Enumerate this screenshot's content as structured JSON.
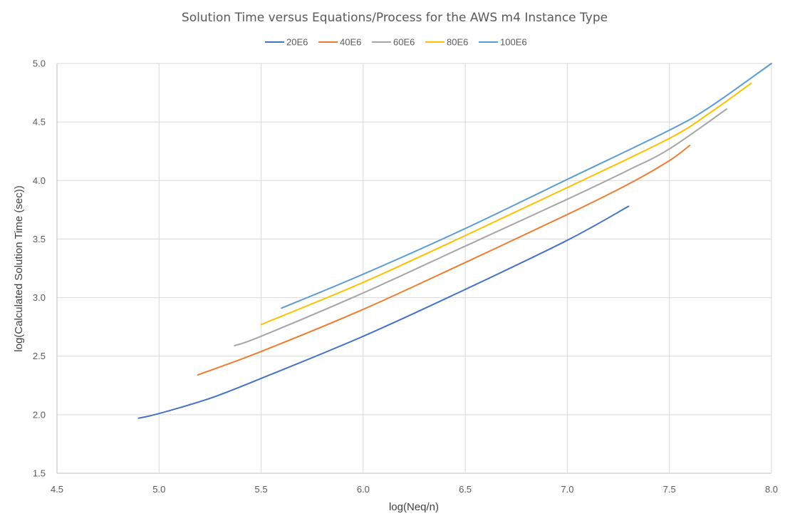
{
  "chart_data": {
    "type": "line",
    "title": "Solution Time versus Equations/Process for the AWS m4 Instance Type",
    "xlabel": "log(Neq/n)",
    "ylabel": "log(Calculated Solution Time (sec))",
    "xlim": [
      4.5,
      8.0
    ],
    "ylim": [
      1.5,
      5.0
    ],
    "xticks": [
      "4.5",
      "5.0",
      "5.5",
      "6.0",
      "6.5",
      "7.0",
      "7.5",
      "8.0"
    ],
    "yticks": [
      "1.5",
      "2.0",
      "2.5",
      "3.0",
      "3.5",
      "4.0",
      "4.5",
      "5.0"
    ],
    "grid": true,
    "legend_position": "top",
    "series": [
      {
        "name": "20E6",
        "color": "#4472c4",
        "points": [
          [
            4.9,
            1.97
          ],
          [
            5.0,
            2.01
          ],
          [
            5.25,
            2.14
          ],
          [
            5.5,
            2.31
          ],
          [
            6.0,
            2.67
          ],
          [
            6.5,
            3.07
          ],
          [
            7.0,
            3.49
          ],
          [
            7.3,
            3.78
          ]
        ]
      },
      {
        "name": "40E6",
        "color": "#ed7d31",
        "points": [
          [
            5.19,
            2.34
          ],
          [
            5.5,
            2.54
          ],
          [
            6.0,
            2.9
          ],
          [
            6.5,
            3.3
          ],
          [
            7.0,
            3.71
          ],
          [
            7.3,
            3.97
          ],
          [
            7.5,
            4.17
          ],
          [
            7.6,
            4.3
          ]
        ]
      },
      {
        "name": "60E6",
        "color": "#a5a5a5",
        "points": [
          [
            5.37,
            2.59
          ],
          [
            5.5,
            2.67
          ],
          [
            6.0,
            3.04
          ],
          [
            6.5,
            3.44
          ],
          [
            7.0,
            3.84
          ],
          [
            7.3,
            4.09
          ],
          [
            7.5,
            4.27
          ],
          [
            7.78,
            4.61
          ]
        ]
      },
      {
        "name": "80E6",
        "color": "#ffc000",
        "points": [
          [
            5.5,
            2.77
          ],
          [
            6.0,
            3.13
          ],
          [
            6.5,
            3.53
          ],
          [
            7.0,
            3.94
          ],
          [
            7.5,
            4.36
          ],
          [
            7.7,
            4.58
          ],
          [
            7.9,
            4.83
          ]
        ]
      },
      {
        "name": "100E6",
        "color": "#5b9bd5",
        "points": [
          [
            5.6,
            2.91
          ],
          [
            6.0,
            3.2
          ],
          [
            6.5,
            3.59
          ],
          [
            7.0,
            4.01
          ],
          [
            7.5,
            4.43
          ],
          [
            7.7,
            4.63
          ],
          [
            8.0,
            5.0
          ]
        ]
      }
    ]
  }
}
